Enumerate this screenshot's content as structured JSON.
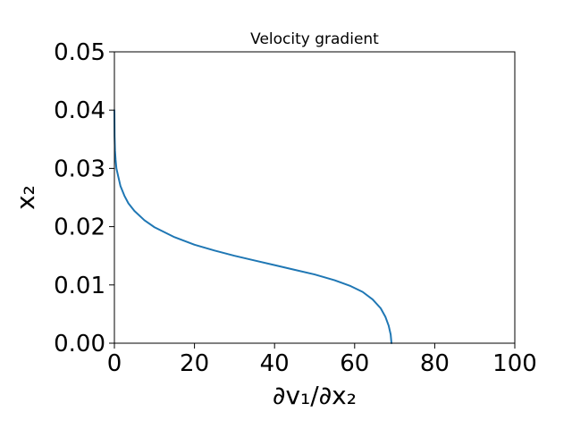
{
  "chart_data": {
    "type": "line",
    "title": "Velocity gradient",
    "xlabel": "∂v₁/∂x₂",
    "ylabel": "x₂",
    "xlim": [
      0,
      100
    ],
    "ylim": [
      0,
      0.05
    ],
    "xticks": [
      "0",
      "20",
      "40",
      "60",
      "80",
      "100"
    ],
    "yticks": [
      "0.00",
      "0.01",
      "0.02",
      "0.03",
      "0.04",
      "0.05"
    ],
    "grid": false,
    "legend": "none",
    "series": [
      {
        "color": "#1f77b4",
        "x": [
          69.2,
          69.0,
          68.5,
          67.7,
          66.5,
          64.5,
          62.0,
          59.0,
          55.0,
          50.0,
          45.0,
          40.0,
          35.0,
          30.0,
          25.0,
          20.0,
          15.0,
          10.0,
          7.5,
          5.0,
          3.5,
          2.5,
          1.5,
          1.0,
          0.5,
          0.3,
          0.15,
          0.05,
          0.0
        ],
        "y": [
          0.0,
          0.0015,
          0.003,
          0.0045,
          0.006,
          0.0075,
          0.0088,
          0.0098,
          0.0108,
          0.0118,
          0.0126,
          0.0134,
          0.0142,
          0.015,
          0.0159,
          0.0169,
          0.0182,
          0.0199,
          0.0211,
          0.0227,
          0.024,
          0.0253,
          0.027,
          0.0285,
          0.03,
          0.0315,
          0.033,
          0.0355,
          0.04
        ]
      }
    ]
  }
}
